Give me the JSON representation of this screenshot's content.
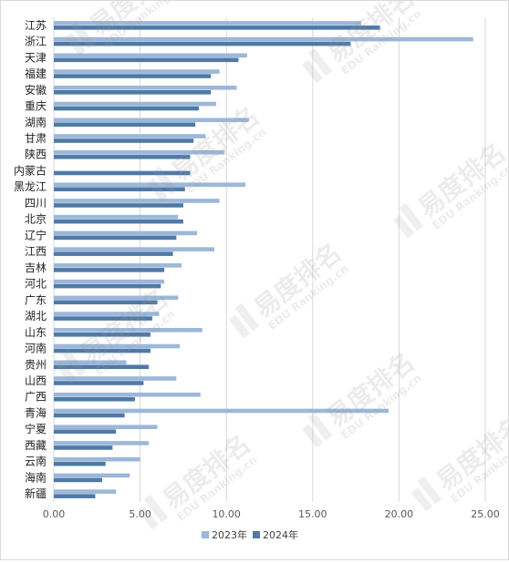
{
  "chart_data": {
    "type": "bar",
    "orientation": "horizontal",
    "categories": [
      "江苏",
      "浙江",
      "天津",
      "福建",
      "安徽",
      "重庆",
      "湖南",
      "甘肃",
      "陕西",
      "内蒙古",
      "黑龙江",
      "四川",
      "北京",
      "辽宁",
      "江西",
      "吉林",
      "河北",
      "广东",
      "湖北",
      "山东",
      "河南",
      "贵州",
      "山西",
      "广西",
      "青海",
      "宁夏",
      "西藏",
      "云南",
      "海南",
      "新疆"
    ],
    "series": [
      {
        "name": "2023年",
        "color": "#9cb7d9",
        "values": [
          17.8,
          24.3,
          11.2,
          9.6,
          10.6,
          9.4,
          11.3,
          8.8,
          9.9,
          0,
          11.1,
          9.6,
          7.2,
          8.3,
          9.3,
          7.4,
          6.4,
          7.2,
          6.1,
          8.6,
          7.3,
          4.2,
          7.1,
          8.5,
          19.4,
          6.0,
          5.5,
          5.0,
          4.4,
          3.6
        ]
      },
      {
        "name": "2024年",
        "color": "#4f79a7",
        "values": [
          18.9,
          17.2,
          10.7,
          9.1,
          9.1,
          8.4,
          8.2,
          8.1,
          7.9,
          7.9,
          7.6,
          7.5,
          7.5,
          7.1,
          6.9,
          6.4,
          6.2,
          6.0,
          5.7,
          5.6,
          5.6,
          5.5,
          5.2,
          4.7,
          4.1,
          3.6,
          3.4,
          3.0,
          2.8,
          2.4
        ]
      }
    ],
    "xlim": [
      0,
      25
    ],
    "ticks": [
      "0.00",
      "5.00",
      "10.00",
      "15.00",
      "20.00",
      "25.00"
    ],
    "tick_values": [
      0,
      5,
      10,
      15,
      20,
      25
    ],
    "grid": "vertical",
    "legend_position": "bottom-center",
    "title": "",
    "xlabel": "",
    "ylabel": ""
  },
  "watermark": {
    "brand": "易度排名",
    "site": "EDU Ranking.cn",
    "color": "#9a9a9a"
  }
}
